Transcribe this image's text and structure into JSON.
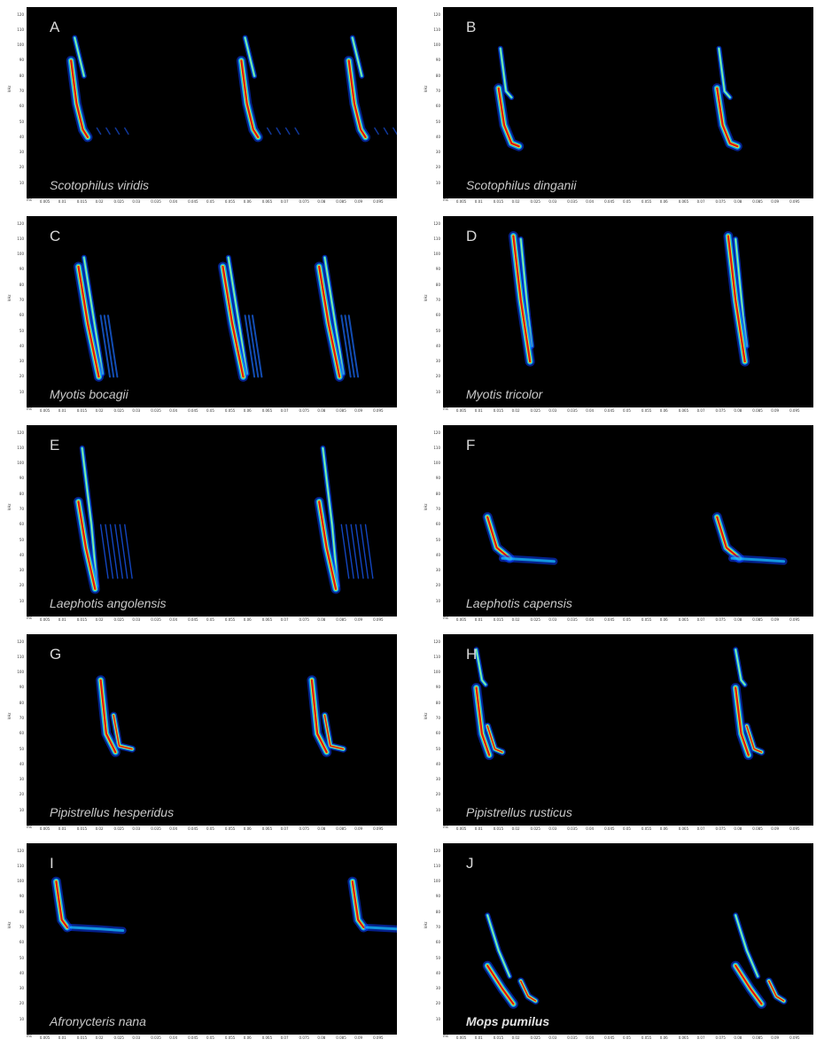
{
  "chart_data": [
    {
      "type": "heatmap",
      "letter": "A",
      "species": "Scotophilus viridis",
      "bold": false,
      "ylabel": "kHz",
      "xunit": "ms",
      "yticks": [
        "120",
        "110",
        "100",
        "90",
        "80",
        "70",
        "60",
        "50",
        "40",
        "30",
        "20",
        "10"
      ],
      "xticks": [
        "0.005",
        "0.01",
        "0.015",
        "0.02",
        "0.025",
        "0.03",
        "0.035",
        "0.04",
        "0.045",
        "0.05",
        "0.055",
        "0.06",
        "0.065",
        "0.07",
        "0.075",
        "0.08",
        "0.085",
        "0.09",
        "0.095"
      ],
      "pulses": [
        0.012,
        0.058,
        0.087
      ]
    },
    {
      "type": "heatmap",
      "letter": "B",
      "species": "Scotophilus dinganii",
      "bold": false,
      "ylabel": "kHz",
      "xunit": "ms",
      "yticks": [
        "120",
        "110",
        "100",
        "90",
        "80",
        "70",
        "60",
        "50",
        "40",
        "30",
        "20",
        "10"
      ],
      "xticks": [
        "0.005",
        "0.01",
        "0.015",
        "0.02",
        "0.025",
        "0.03",
        "0.035",
        "0.04",
        "0.045",
        "0.05",
        "0.055",
        "0.06",
        "0.065",
        "0.07",
        "0.075",
        "0.08",
        "0.085",
        "0.09",
        "0.095"
      ],
      "pulses": [
        0.015,
        0.074
      ]
    },
    {
      "type": "heatmap",
      "letter": "C",
      "species": "Myotis bocagii",
      "bold": false,
      "ylabel": "kHz",
      "xunit": "ms",
      "yticks": [
        "120",
        "110",
        "100",
        "90",
        "80",
        "70",
        "60",
        "50",
        "40",
        "30",
        "20",
        "10"
      ],
      "xticks": [
        "0.005",
        "0.01",
        "0.015",
        "0.02",
        "0.025",
        "0.03",
        "0.035",
        "0.04",
        "0.045",
        "0.05",
        "0.055",
        "0.06",
        "0.065",
        "0.07",
        "0.075",
        "0.08",
        "0.085",
        "0.09",
        "0.095"
      ],
      "pulses": [
        0.014,
        0.053,
        0.079
      ]
    },
    {
      "type": "heatmap",
      "letter": "D",
      "species": "Myotis tricolor",
      "bold": false,
      "ylabel": "kHz",
      "xunit": "ms",
      "yticks": [
        "120",
        "110",
        "100",
        "90",
        "80",
        "70",
        "60",
        "50",
        "40",
        "30",
        "20",
        "10"
      ],
      "xticks": [
        "0.005",
        "0.01",
        "0.015",
        "0.02",
        "0.025",
        "0.03",
        "0.035",
        "0.04",
        "0.045",
        "0.05",
        "0.055",
        "0.06",
        "0.065",
        "0.07",
        "0.075",
        "0.08",
        "0.085",
        "0.09",
        "0.095"
      ],
      "pulses": [
        0.019,
        0.077
      ]
    },
    {
      "type": "heatmap",
      "letter": "E",
      "species": "Laephotis angolensis",
      "bold": false,
      "ylabel": "kHz",
      "xunit": "ms",
      "yticks": [
        "120",
        "110",
        "100",
        "90",
        "80",
        "70",
        "60",
        "50",
        "40",
        "30",
        "20",
        "10"
      ],
      "xticks": [
        "0.005",
        "0.01",
        "0.015",
        "0.02",
        "0.025",
        "0.03",
        "0.035",
        "0.04",
        "0.045",
        "0.05",
        "0.055",
        "0.06",
        "0.065",
        "0.07",
        "0.075",
        "0.08",
        "0.085",
        "0.09",
        "0.095"
      ],
      "pulses": [
        0.014,
        0.079
      ]
    },
    {
      "type": "heatmap",
      "letter": "F",
      "species": "Laephotis capensis",
      "bold": false,
      "ylabel": "kHz",
      "xunit": "ms",
      "yticks": [
        "120",
        "110",
        "100",
        "90",
        "80",
        "70",
        "60",
        "50",
        "40",
        "30",
        "20",
        "10"
      ],
      "xticks": [
        "0.005",
        "0.01",
        "0.015",
        "0.02",
        "0.025",
        "0.03",
        "0.035",
        "0.04",
        "0.045",
        "0.05",
        "0.055",
        "0.06",
        "0.065",
        "0.07",
        "0.075",
        "0.08",
        "0.085",
        "0.09",
        "0.095"
      ],
      "pulses": [
        0.012,
        0.074
      ]
    },
    {
      "type": "heatmap",
      "letter": "G",
      "species": "Pipistrellus hesperidus",
      "bold": false,
      "ylabel": "kHz",
      "xunit": "ms",
      "yticks": [
        "120",
        "110",
        "100",
        "90",
        "80",
        "70",
        "60",
        "50",
        "40",
        "30",
        "20",
        "10"
      ],
      "xticks": [
        "0.005",
        "0.01",
        "0.015",
        "0.02",
        "0.025",
        "0.03",
        "0.035",
        "0.04",
        "0.045",
        "0.05",
        "0.055",
        "0.06",
        "0.065",
        "0.07",
        "0.075",
        "0.08",
        "0.085",
        "0.09",
        "0.095"
      ],
      "pulses": [
        0.02,
        0.077
      ]
    },
    {
      "type": "heatmap",
      "letter": "H",
      "species": "Pipistrellus rusticus",
      "bold": false,
      "ylabel": "kHz",
      "xunit": "ms",
      "yticks": [
        "120",
        "110",
        "100",
        "90",
        "80",
        "70",
        "60",
        "50",
        "40",
        "30",
        "20",
        "10"
      ],
      "xticks": [
        "0.005",
        "0.01",
        "0.015",
        "0.02",
        "0.025",
        "0.03",
        "0.035",
        "0.04",
        "0.045",
        "0.05",
        "0.055",
        "0.06",
        "0.065",
        "0.07",
        "0.075",
        "0.08",
        "0.085",
        "0.09",
        "0.095"
      ],
      "pulses": [
        0.009,
        0.079
      ]
    },
    {
      "type": "heatmap",
      "letter": "I",
      "species": "Afronycteris nana",
      "bold": false,
      "ylabel": "kHz",
      "xunit": "ms",
      "yticks": [
        "120",
        "110",
        "100",
        "90",
        "80",
        "70",
        "60",
        "50",
        "40",
        "30",
        "20",
        "10"
      ],
      "xticks": [
        "0.005",
        "0.01",
        "0.015",
        "0.02",
        "0.025",
        "0.03",
        "0.035",
        "0.04",
        "0.045",
        "0.05",
        "0.055",
        "0.06",
        "0.065",
        "0.07",
        "0.075",
        "0.08",
        "0.085",
        "0.09",
        "0.095"
      ],
      "pulses": [
        0.008,
        0.088
      ]
    },
    {
      "type": "heatmap",
      "letter": "J",
      "species": "Mops pumilus",
      "bold": true,
      "ylabel": "kHz",
      "xunit": "ms",
      "yticks": [
        "120",
        "110",
        "100",
        "90",
        "80",
        "70",
        "60",
        "50",
        "40",
        "30",
        "20",
        "10"
      ],
      "xticks": [
        "0.005",
        "0.01",
        "0.015",
        "0.02",
        "0.025",
        "0.03",
        "0.035",
        "0.04",
        "0.045",
        "0.05",
        "0.055",
        "0.06",
        "0.065",
        "0.07",
        "0.075",
        "0.08",
        "0.085",
        "0.09",
        "0.095"
      ],
      "pulses": [
        0.012,
        0.079
      ]
    }
  ]
}
